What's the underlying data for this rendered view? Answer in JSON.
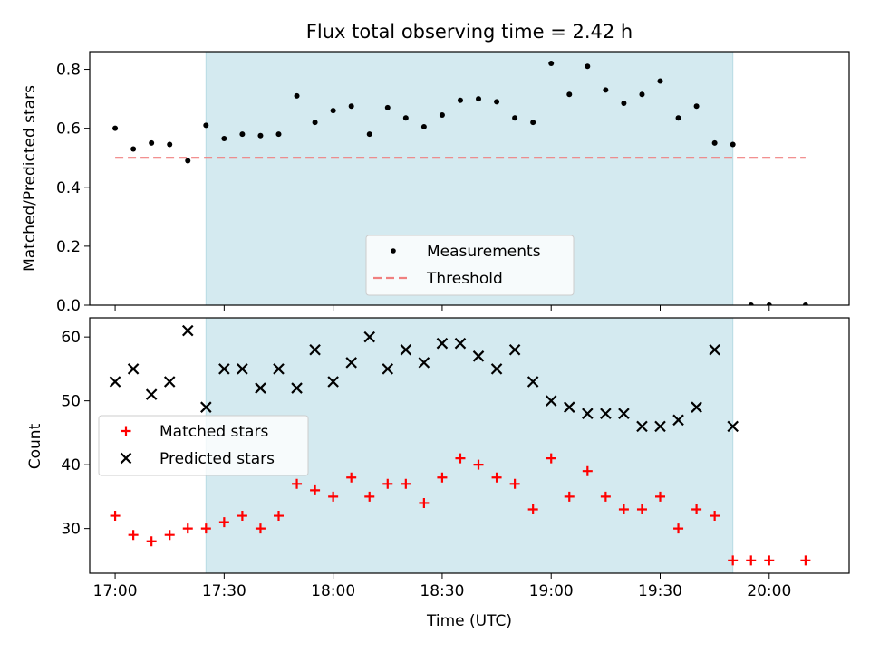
{
  "chart_data": [
    {
      "type": "scatter",
      "title": "Flux total observing time = 2.42 h",
      "xlabel": "",
      "ylabel": "Matched/Predicted stars",
      "ylim": [
        0,
        0.86
      ],
      "yticks": [
        "0.0",
        "0.2",
        "0.4",
        "0.6",
        "0.8"
      ],
      "ytick_values": [
        0,
        0.2,
        0.4,
        0.6,
        0.8
      ],
      "xlim": [
        "16:53",
        "20:22"
      ],
      "shaded_region": {
        "start": "17:25",
        "end": "19:50",
        "color": "#d4eaf0"
      },
      "legend": {
        "placement": "bottom-center",
        "entries": [
          "Measurements",
          "Threshold"
        ]
      },
      "series": [
        {
          "name": "Measurements",
          "marker": "dot",
          "color": "#000000",
          "points": [
            [
              "17:00",
              0.6
            ],
            [
              "17:05",
              0.53
            ],
            [
              "17:10",
              0.55
            ],
            [
              "17:15",
              0.545
            ],
            [
              "17:20",
              0.49
            ],
            [
              "17:25",
              0.61
            ],
            [
              "17:30",
              0.565
            ],
            [
              "17:35",
              0.58
            ],
            [
              "17:40",
              0.575
            ],
            [
              "17:45",
              0.58
            ],
            [
              "17:50",
              0.71
            ],
            [
              "17:55",
              0.62
            ],
            [
              "18:00",
              0.66
            ],
            [
              "18:05",
              0.675
            ],
            [
              "18:10",
              0.58
            ],
            [
              "18:15",
              0.67
            ],
            [
              "18:20",
              0.635
            ],
            [
              "18:25",
              0.605
            ],
            [
              "18:30",
              0.645
            ],
            [
              "18:35",
              0.695
            ],
            [
              "18:40",
              0.7
            ],
            [
              "18:45",
              0.69
            ],
            [
              "18:50",
              0.635
            ],
            [
              "18:55",
              0.62
            ],
            [
              "19:00",
              0.82
            ],
            [
              "19:05",
              0.715
            ],
            [
              "19:10",
              0.81
            ],
            [
              "19:15",
              0.73
            ],
            [
              "19:20",
              0.685
            ],
            [
              "19:25",
              0.715
            ],
            [
              "19:30",
              0.76
            ],
            [
              "19:35",
              0.635
            ],
            [
              "19:40",
              0.675
            ],
            [
              "19:45",
              0.55
            ],
            [
              "19:50",
              0.545
            ],
            [
              "19:55",
              0.0
            ],
            [
              "20:00",
              0.0
            ],
            [
              "20:10",
              0.0
            ]
          ]
        },
        {
          "name": "Threshold",
          "marker": "dashed-line",
          "color": "#f08080",
          "points": [
            [
              "17:00",
              0.5
            ],
            [
              "20:10",
              0.5
            ]
          ]
        }
      ]
    },
    {
      "type": "scatter",
      "title": "",
      "xlabel": "Time (UTC)",
      "ylabel": "Count",
      "ylim": [
        23,
        63
      ],
      "yticks": [
        "30",
        "40",
        "50",
        "60"
      ],
      "ytick_values": [
        30,
        40,
        50,
        60
      ],
      "xlim": [
        "16:53",
        "20:22"
      ],
      "xticks": [
        "17:00",
        "17:30",
        "18:00",
        "18:30",
        "19:00",
        "19:30",
        "20:00"
      ],
      "shaded_region": {
        "start": "17:25",
        "end": "19:50",
        "color": "#d4eaf0"
      },
      "legend": {
        "placement": "center-left",
        "entries": [
          "Matched stars",
          "Predicted stars"
        ]
      },
      "series": [
        {
          "name": "Matched stars",
          "marker": "plus",
          "color": "#ff0000",
          "points": [
            [
              "17:00",
              32
            ],
            [
              "17:05",
              29
            ],
            [
              "17:10",
              28
            ],
            [
              "17:15",
              29
            ],
            [
              "17:20",
              30
            ],
            [
              "17:25",
              30
            ],
            [
              "17:30",
              31
            ],
            [
              "17:35",
              32
            ],
            [
              "17:40",
              30
            ],
            [
              "17:45",
              32
            ],
            [
              "17:50",
              37
            ],
            [
              "17:55",
              36
            ],
            [
              "18:00",
              35
            ],
            [
              "18:05",
              38
            ],
            [
              "18:10",
              35
            ],
            [
              "18:15",
              37
            ],
            [
              "18:20",
              37
            ],
            [
              "18:25",
              34
            ],
            [
              "18:30",
              38
            ],
            [
              "18:35",
              41
            ],
            [
              "18:40",
              40
            ],
            [
              "18:45",
              38
            ],
            [
              "18:50",
              37
            ],
            [
              "18:55",
              33
            ],
            [
              "19:00",
              41
            ],
            [
              "19:05",
              35
            ],
            [
              "19:10",
              39
            ],
            [
              "19:15",
              35
            ],
            [
              "19:20",
              33
            ],
            [
              "19:25",
              33
            ],
            [
              "19:30",
              35
            ],
            [
              "19:35",
              30
            ],
            [
              "19:40",
              33
            ],
            [
              "19:45",
              32
            ],
            [
              "19:50",
              25
            ],
            [
              "19:55",
              25
            ],
            [
              "20:00",
              25
            ],
            [
              "20:10",
              25
            ]
          ]
        },
        {
          "name": "Predicted stars",
          "marker": "x",
          "color": "#000000",
          "points": [
            [
              "17:00",
              53
            ],
            [
              "17:05",
              55
            ],
            [
              "17:10",
              51
            ],
            [
              "17:15",
              53
            ],
            [
              "17:20",
              61
            ],
            [
              "17:25",
              49
            ],
            [
              "17:30",
              55
            ],
            [
              "17:35",
              55
            ],
            [
              "17:40",
              52
            ],
            [
              "17:45",
              55
            ],
            [
              "17:50",
              52
            ],
            [
              "17:55",
              58
            ],
            [
              "18:00",
              53
            ],
            [
              "18:05",
              56
            ],
            [
              "18:10",
              60
            ],
            [
              "18:15",
              55
            ],
            [
              "18:20",
              58
            ],
            [
              "18:25",
              56
            ],
            [
              "18:30",
              59
            ],
            [
              "18:35",
              59
            ],
            [
              "18:40",
              57
            ],
            [
              "18:45",
              55
            ],
            [
              "18:50",
              58
            ],
            [
              "18:55",
              53
            ],
            [
              "19:00",
              50
            ],
            [
              "19:05",
              49
            ],
            [
              "19:10",
              48
            ],
            [
              "19:15",
              48
            ],
            [
              "19:20",
              48
            ],
            [
              "19:25",
              46
            ],
            [
              "19:30",
              46
            ],
            [
              "19:35",
              47
            ],
            [
              "19:40",
              49
            ],
            [
              "19:45",
              58
            ],
            [
              "19:50",
              46
            ]
          ]
        }
      ]
    }
  ]
}
